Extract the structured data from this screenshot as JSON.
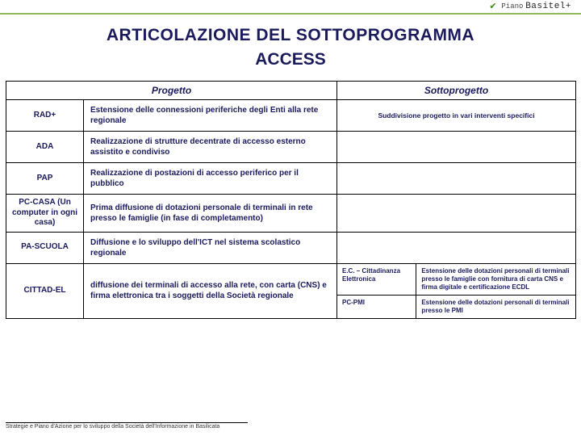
{
  "header": {
    "piano": "Piano",
    "brand": "Basitel+",
    "accent_color": "#8fb959"
  },
  "title": "ARTICOLAZIONE DEL SOTTOPROGRAMMA",
  "subtitle": "ACCESS",
  "columns": {
    "progetto": "Progetto",
    "sottoprogetto": "Sottoprogetto"
  },
  "rows": [
    {
      "code": "RAD+",
      "desc": "Estensione delle connessioni periferiche degli Enti alla rete regionale",
      "sotto": "Suddivisione progetto in vari interventi specifici"
    },
    {
      "code": "ADA",
      "desc": "Realizzazione di strutture decentrate di accesso esterno assistito e condiviso",
      "sotto": ""
    },
    {
      "code": "PAP",
      "desc": "Realizzazione di postazioni di accesso periferico per il pubblico",
      "sotto": ""
    },
    {
      "code": "PC-CASA (Un computer in ogni casa)",
      "desc": "Prima diffusione di dotazioni personale di terminali in rete presso le famiglie (in fase di completamento)",
      "sotto": ""
    },
    {
      "code": "PA-SCUOLA",
      "desc": "Diffusione e lo sviluppo dell'ICT nel sistema scolastico regionale",
      "sotto": ""
    },
    {
      "code": "CITTAD-EL",
      "desc": "diffusione dei terminali di accesso alla rete, con carta (CNS) e firma elettronica tra i soggetti della Società regionale",
      "sotto_grid": {
        "cells": [
          "E.C. – Cittadinanza Elettronica",
          "Estensione delle dotazioni personali di terminali presso le famiglie con fornitura di carta CNS e firma digitale e certificazione ECDL",
          "PC-PMI",
          "Estensione delle dotazioni personali di terminali presso le PMI"
        ]
      }
    }
  ],
  "footer": "Strategie e Piano d'Azione per lo sviluppo della Società dell'Informazione in Basilicata",
  "colors": {
    "title": "#1a1a5c",
    "border": "#000000",
    "background": "#ffffff"
  }
}
